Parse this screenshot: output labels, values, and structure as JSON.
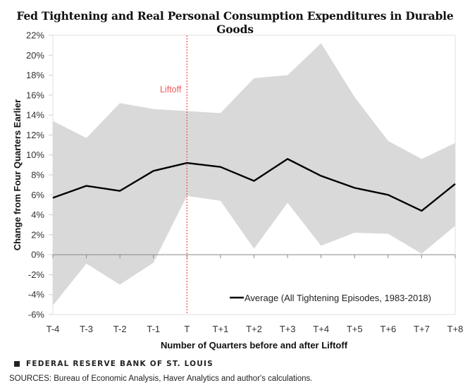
{
  "chart_data": {
    "type": "area",
    "title": "Fed Tightening and Real Personal Consumption Expenditures in Durable Goods",
    "xlabel": "Number of Quarters  before and after Liftoff",
    "ylabel": "Change from Four Quarters Earlier",
    "categories": [
      "T-4",
      "T-3",
      "T-2",
      "T-1",
      "T",
      "T+1",
      "T+2",
      "T+3",
      "T+4",
      "T+5",
      "T+6",
      "T+7",
      "T+8"
    ],
    "ylim": [
      -6,
      22
    ],
    "ytick_step": 2,
    "ytick_labels": [
      "22%",
      "20%",
      "18%",
      "16%",
      "14%",
      "12%",
      "10%",
      "8%",
      "6%",
      "4%",
      "2%",
      "0%",
      "-2%",
      "-4%",
      "-6%"
    ],
    "y_unit": "%",
    "grid": false,
    "series": [
      {
        "name": "Range (band)",
        "kind": "band",
        "upper": [
          13.4,
          11.7,
          15.2,
          14.6,
          14.4,
          14.2,
          17.7,
          18.0,
          21.2,
          15.8,
          11.4,
          9.6,
          11.2
        ],
        "lower": [
          -5.1,
          -0.9,
          -3.0,
          -0.8,
          5.9,
          5.4,
          0.6,
          5.2,
          0.9,
          2.2,
          2.1,
          0.1,
          2.9
        ],
        "color": "#d9d9d9"
      },
      {
        "name": "Average (All Tightening Episodes, 1983-2018)",
        "kind": "line",
        "values": [
          5.7,
          6.9,
          6.4,
          8.4,
          9.2,
          8.8,
          7.4,
          9.6,
          7.9,
          6.7,
          6.0,
          4.4,
          7.1
        ],
        "color": "#000000"
      }
    ],
    "annotations": [
      {
        "text": "Liftoff",
        "at_category": "T",
        "style": "vertical-dotted-line",
        "color": "#f05a5a"
      }
    ],
    "legend": {
      "placement": "bottom-right",
      "entries": [
        "Average (All Tightening Episodes, 1983-2018)"
      ]
    }
  },
  "footer": {
    "brand": "FEDERAL RESERVE BANK OF ST. LOUIS",
    "sources": "SOURCES: Bureau of Economic Analysis, Haver Analytics and author's calculations."
  }
}
